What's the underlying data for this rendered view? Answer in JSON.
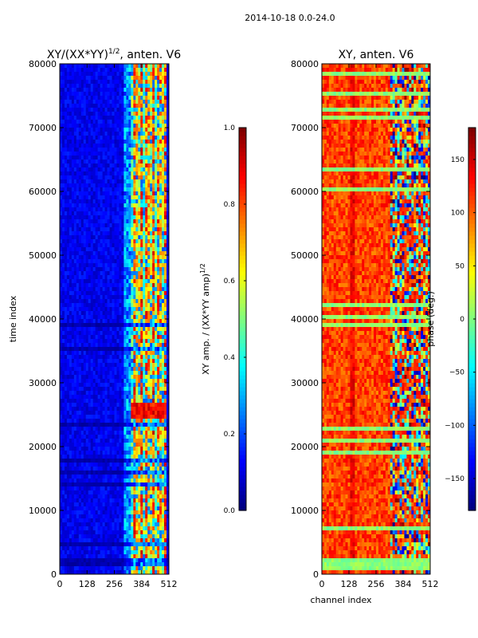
{
  "suptitle": "2014-10-18 0.0-24.0",
  "colors": {
    "jet": [
      "#00007f",
      "#0000ff",
      "#007fff",
      "#00ffff",
      "#7fff7f",
      "#ffff00",
      "#ff7f00",
      "#ff0000",
      "#7f0000"
    ],
    "axis": "#000000",
    "background": "#ffffff"
  },
  "chart_data": [
    {
      "type": "heatmap",
      "title": "XY/(XX*YY)",
      "title_exponent": "1/2",
      "title_suffix": ", anten. V6",
      "xlabel": "",
      "ylabel": "time index",
      "xlim": [
        0,
        512
      ],
      "ylim": [
        0,
        80000
      ],
      "xticks": [
        0,
        128,
        256,
        384,
        512
      ],
      "yticks": [
        0,
        10000,
        20000,
        30000,
        40000,
        50000,
        60000,
        70000,
        80000
      ],
      "description": "mostly low amplitude (~0.05-0.15); bright striped region in channels ~330-500 with values 0.4-0.9",
      "colorbar": {
        "label": "XY amp. / (XX*YY amp)",
        "label_exponent": "1/2",
        "range": [
          0.0,
          1.0
        ],
        "ticks": [
          "0.0",
          "0.2",
          "0.4",
          "0.6",
          "0.8",
          "1.0"
        ]
      }
    },
    {
      "type": "heatmap",
      "title": "XY, anten. V6",
      "xlabel": "channel index",
      "ylabel": "",
      "xlim": [
        0,
        512
      ],
      "ylim": [
        0,
        80000
      ],
      "xticks": [
        0,
        128,
        256,
        384,
        512
      ],
      "yticks": [
        0,
        10000,
        20000,
        30000,
        40000,
        50000,
        60000,
        70000,
        80000
      ],
      "description": "phase mostly 80-140 deg; noisy region in channels ~320-512 spanning -180 to 180",
      "colorbar": {
        "label": "phase (deg.)",
        "range": [
          -180,
          180
        ],
        "ticks": [
          "−150",
          "−100",
          "−50",
          "0",
          "50",
          "100",
          "150"
        ]
      }
    }
  ]
}
